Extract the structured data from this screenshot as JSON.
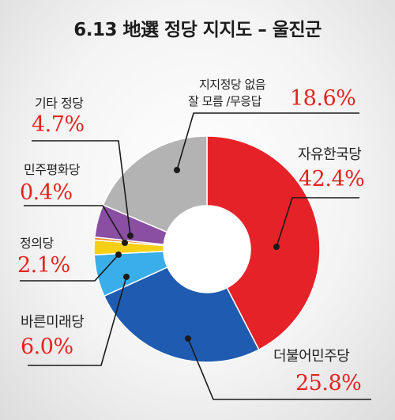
{
  "title": "6.13 地選 정당 지지도 – 울진군",
  "chart_data": {
    "type": "pie",
    "donut": true,
    "title": "6.13 地選 정당 지지도 – 울진군",
    "slices": [
      {
        "label": "자유한국당",
        "value": 42.4,
        "value_text": "42.4%",
        "color": "#e52228"
      },
      {
        "label": "더불어민주당",
        "value": 25.8,
        "value_text": "25.8%",
        "color": "#1f5bb0"
      },
      {
        "label": "바른미래당",
        "value": 6.0,
        "value_text": "6.0%",
        "color": "#3aaee8"
      },
      {
        "label": "정의당",
        "value": 2.1,
        "value_text": "2.1%",
        "color": "#f6cf16"
      },
      {
        "label": "민주평화당",
        "value": 0.4,
        "value_text": "0.4%",
        "color": "#e8862a"
      },
      {
        "label": "기타 정당",
        "value": 4.7,
        "value_text": "4.7%",
        "color": "#8a4fa3"
      },
      {
        "label_lines": [
          "지지정당 없음",
          "잘 모름 /무응답"
        ],
        "value": 18.6,
        "value_text": "18.6%",
        "color": "#b3b3b3"
      }
    ]
  }
}
